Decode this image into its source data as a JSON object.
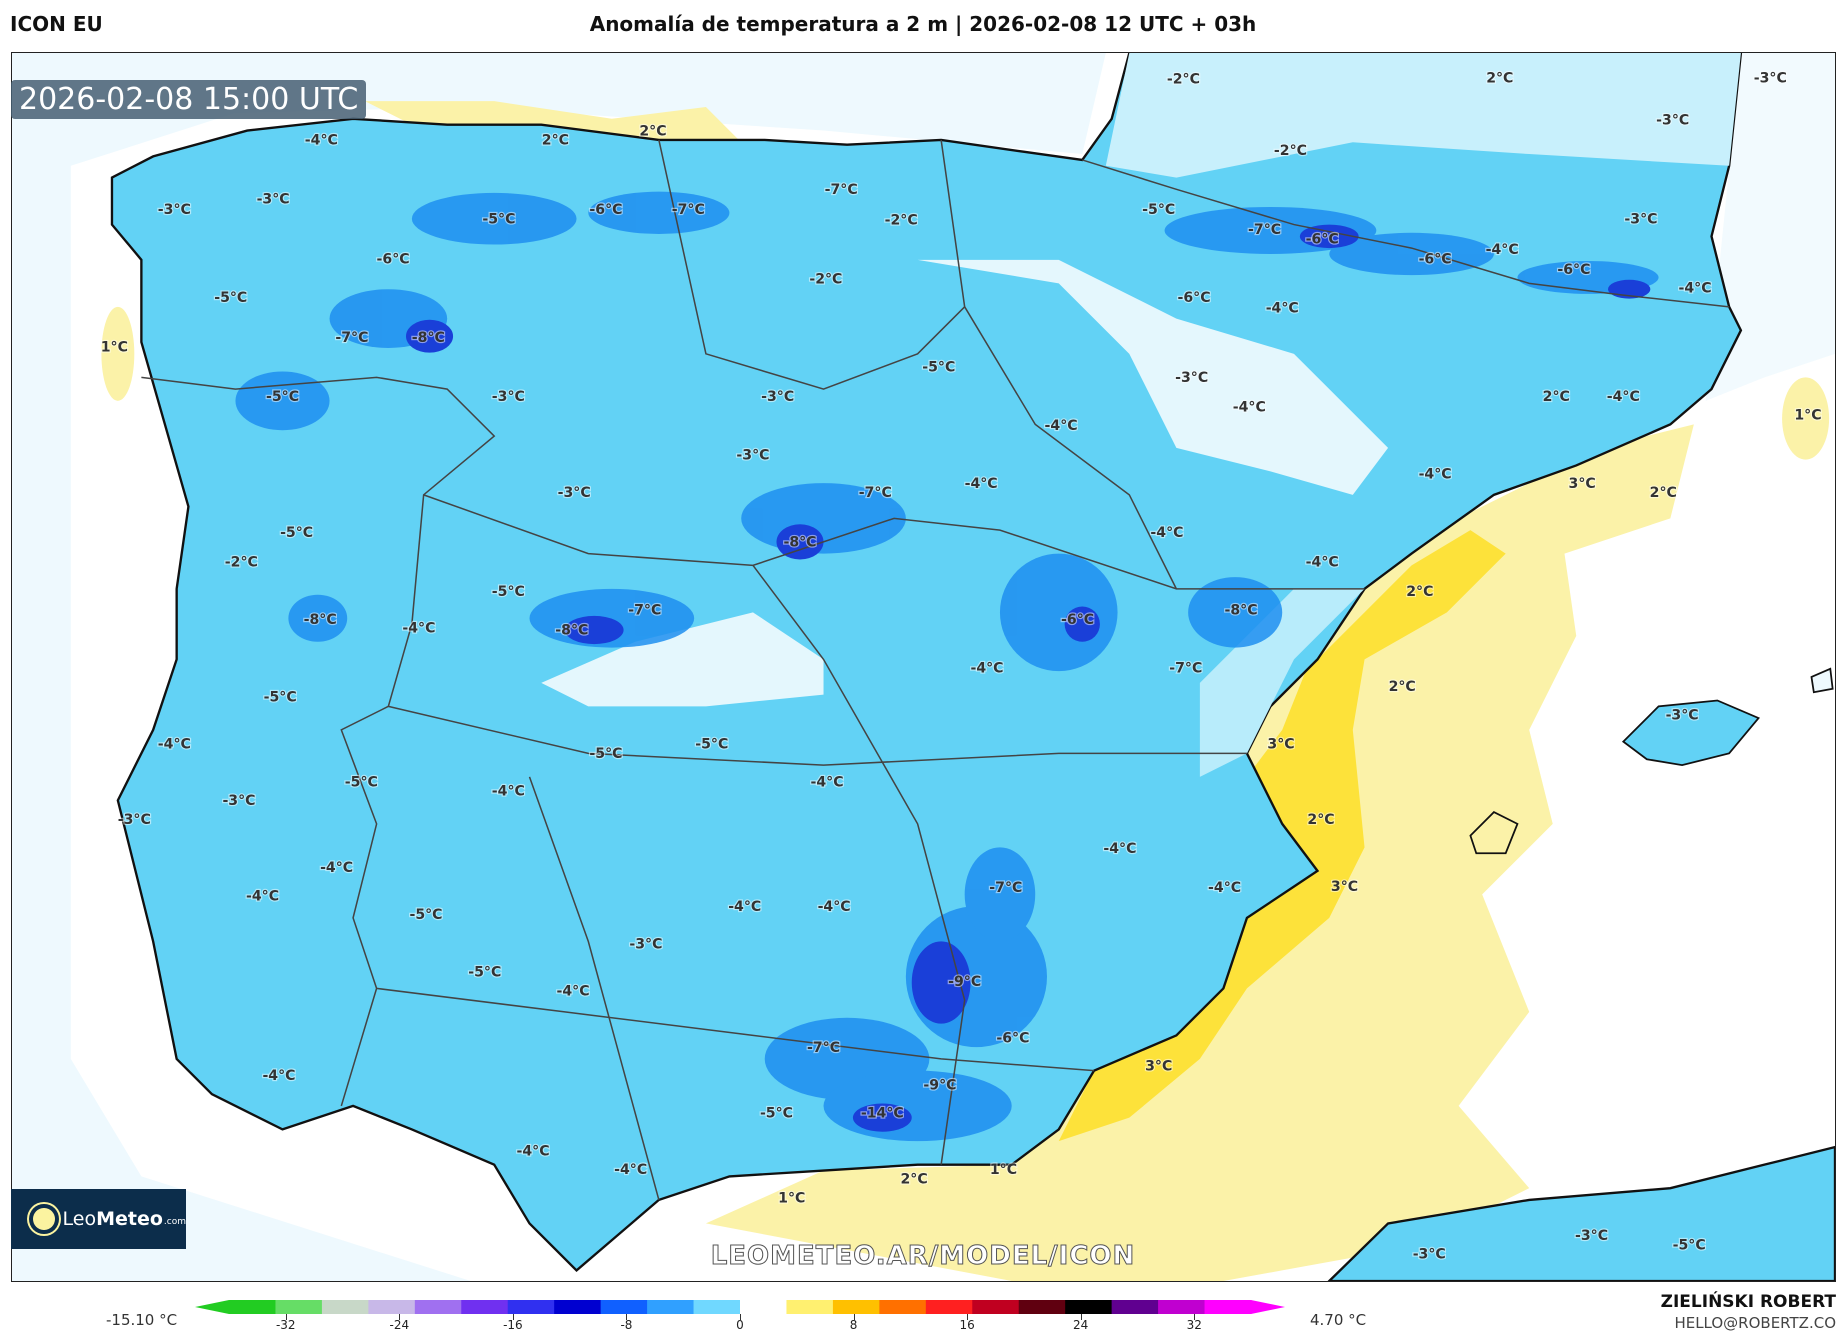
{
  "header": {
    "model": "ICON EU",
    "title": "Anomalía de temperatura a 2 m | 2026-02-08 12 UTC + 03h"
  },
  "map": {
    "valid_time": "2026-02-08 15:00 UTC",
    "watermark": "LEOMETEO.AR/MODEL/ICON",
    "logo": {
      "text_light": "Leo",
      "text_bold": "Meteo",
      "suffix": ".com"
    },
    "labels": [
      "-2°C",
      "2°C",
      "-3°C",
      "-3°C",
      "2°C",
      "2°C",
      "-4°C",
      "-2°C",
      "-3°C",
      "-3°C",
      "-5°C",
      "-6°C",
      "-7°C",
      "-7°C",
      "-2°C",
      "-5°C",
      "-7°C",
      "-6°C",
      "-3°C",
      "-6°C",
      "-4°C",
      "-6°C",
      "-6°C",
      "-2°C",
      "-5°C",
      "-6°C",
      "-4°C",
      "-4°C",
      "-7°C",
      "-8°C",
      "1°C",
      "-5°C",
      "-3°C",
      "-5°C",
      "-3°C",
      "-3°C",
      "2°C",
      "-4°C",
      "-4°C",
      "1°C",
      "-4°C",
      "-3°C",
      "-4°C",
      "3°C",
      "-3°C",
      "-7°C",
      "-4°C",
      "2°C",
      "-5°C",
      "-4°C",
      "-8°C",
      "-2°C",
      "-4°C",
      "2°C",
      "-5°C",
      "-7°C",
      "-8°C",
      "-8°C",
      "-4°C",
      "-6°C",
      "-8°C",
      "-4°C",
      "-7°C",
      "2°C",
      "-5°C",
      "-3°C",
      "-4°C",
      "-5°C",
      "-5°C",
      "3°C",
      "-5°C",
      "-4°C",
      "-4°C",
      "-3°C",
      "-3°C",
      "2°C",
      "-4°C",
      "-4°C",
      "-7°C",
      "-4°C",
      "3°C",
      "-4°C",
      "-5°C",
      "-4°C",
      "-4°C",
      "-3°C",
      "-5°C",
      "-9°C",
      "-4°C",
      "-6°C",
      "-7°C",
      "3°C",
      "-4°C",
      "-9°C",
      "-5°C",
      "-14°C",
      "-4°C",
      "-4°C",
      "2°C",
      "1°C",
      "1°C",
      "-3°C",
      "-3°C",
      "-5°C"
    ],
    "colors": {
      "sea": "#ffffff",
      "light_blue": "#b8ecfb",
      "cyan": "#55d0f5",
      "blue": "#1e8ff0",
      "dark_blue": "#1a3fd8",
      "yellow_light": "#fbf2a8",
      "yellow": "#fde23a"
    }
  },
  "colorbar": {
    "min_label": "-15.10 °C",
    "max_label": "4.70 °C",
    "ticks": [
      "-32",
      "-24",
      "-16",
      "-8",
      "0",
      "8",
      "16",
      "24",
      "32"
    ],
    "range": [
      -36,
      36
    ],
    "colors": [
      "#22cc22",
      "#66dd66",
      "#c8d8c8",
      "#c8b8e8",
      "#a070f0",
      "#7030f0",
      "#3030f0",
      "#0000d0",
      "#1060ff",
      "#30a0ff",
      "#70d8ff",
      "#ffffff",
      "#fff070",
      "#ffc000",
      "#ff7000",
      "#ff2020",
      "#c00020",
      "#600010",
      "#000000",
      "#600090",
      "#c000d0",
      "#ff00ff"
    ]
  },
  "credits": {
    "author": "ZIELIŃSKI ROBERT",
    "email": "HELLO@ROBERTZ.CO"
  }
}
